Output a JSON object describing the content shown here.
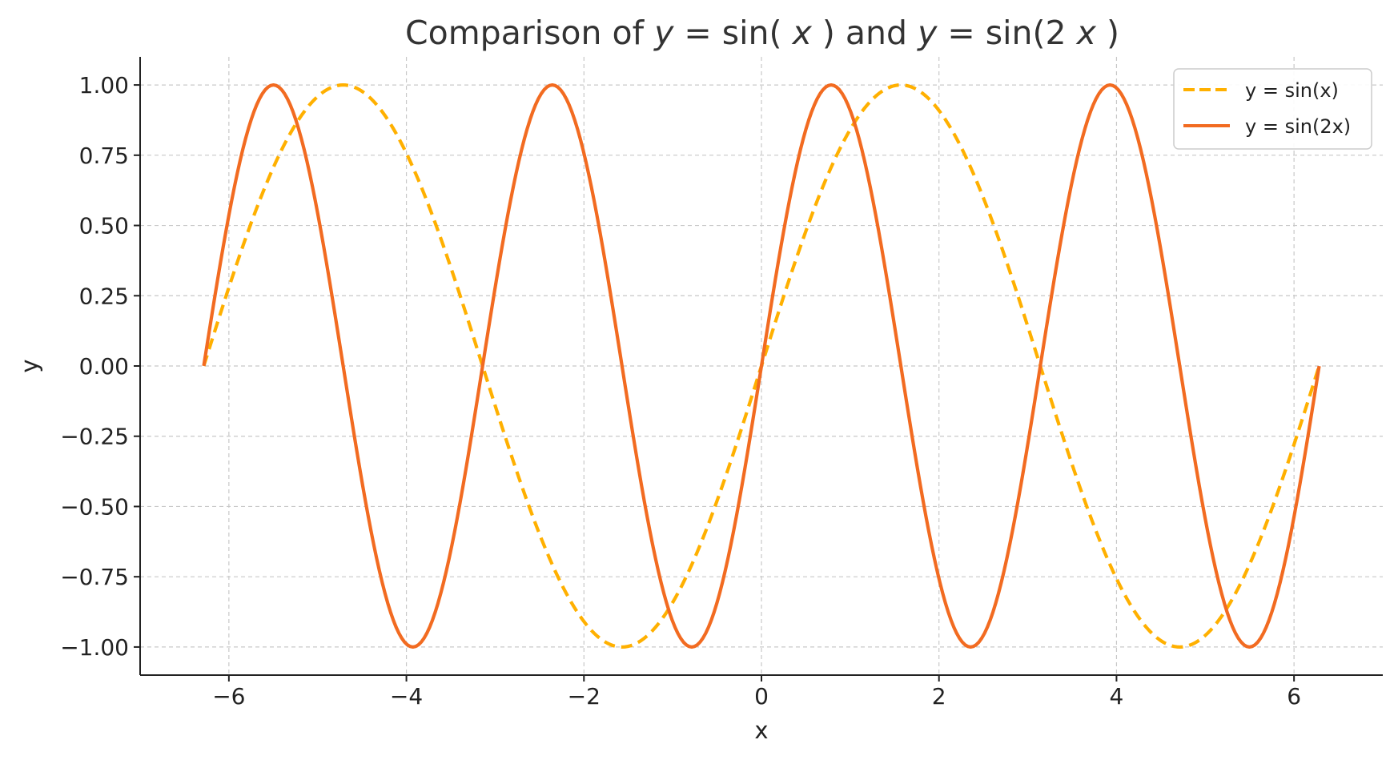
{
  "chart_data": {
    "type": "line",
    "title": "Comparison of y = sin(x) and y = sin(2x)",
    "xlabel": "x",
    "ylabel": "y",
    "xlim": [
      -7,
      7
    ],
    "ylim": [
      -1.1,
      1.1
    ],
    "x_ticks": [
      "−6",
      "−4",
      "−2",
      "0",
      "2",
      "4",
      "6"
    ],
    "x_tick_values": [
      -6,
      -4,
      -2,
      0,
      2,
      4,
      6
    ],
    "y_ticks": [
      "1.00",
      "0.75",
      "0.50",
      "0.25",
      "0.00",
      "−0.25",
      "−0.50",
      "−0.75",
      "−1.00"
    ],
    "y_tick_values": [
      1.0,
      0.75,
      0.5,
      0.25,
      0.0,
      -0.25,
      -0.5,
      -0.75,
      -1.0
    ],
    "grid": true,
    "legend_position": "top-right",
    "x_domain": [
      -6.283,
      6.283
    ],
    "series": [
      {
        "name": "y = sin(x)",
        "color": "#FFB000",
        "style": "dashed",
        "x": [
          -6.283,
          -5.498,
          -4.712,
          -3.927,
          -3.142,
          -2.356,
          -1.571,
          -0.785,
          0.0,
          0.785,
          1.571,
          2.356,
          3.142,
          3.927,
          4.712,
          5.498,
          6.283
        ],
        "y": [
          0.0,
          0.707,
          1.0,
          0.707,
          0.0,
          -0.707,
          -1.0,
          -0.707,
          0.0,
          0.707,
          1.0,
          0.707,
          0.0,
          -0.707,
          -1.0,
          -0.707,
          0.0
        ]
      },
      {
        "name": "y = sin(2x)",
        "color": "#F26B21",
        "style": "solid",
        "x": [
          -6.283,
          -5.498,
          -4.712,
          -3.927,
          -3.142,
          -2.356,
          -1.571,
          -0.785,
          0.0,
          0.785,
          1.571,
          2.356,
          3.142,
          3.927,
          4.712,
          5.498,
          6.283
        ],
        "y": [
          0.0,
          1.0,
          0.0,
          -1.0,
          0.0,
          1.0,
          0.0,
          -1.0,
          0.0,
          1.0,
          0.0,
          -1.0,
          0.0,
          1.0,
          0.0,
          -1.0,
          0.0
        ]
      }
    ]
  }
}
